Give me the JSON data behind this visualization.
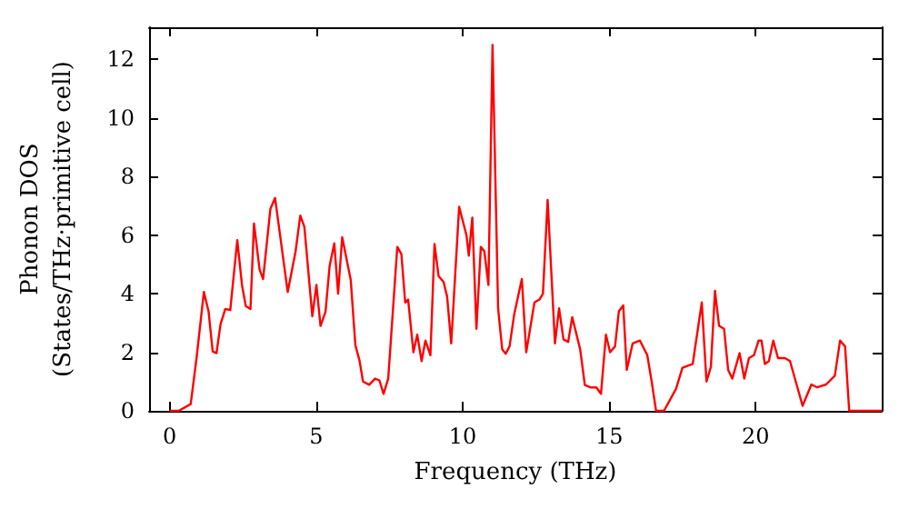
{
  "chart_data": {
    "type": "line",
    "xlabel": "Frequency (THz)",
    "ylabel": "Phonon DOS\n(States/THz·primitive cell)",
    "x": [
      0,
      0.31,
      0.72,
      0.92,
      1.17,
      1.33,
      1.47,
      1.6,
      1.74,
      1.9,
      2.07,
      2.31,
      2.47,
      2.6,
      2.76,
      2.88,
      3.07,
      3.19,
      3.44,
      3.6,
      4.03,
      4.3,
      4.46,
      4.6,
      4.87,
      5.01,
      5.15,
      5.32,
      5.46,
      5.62,
      5.75,
      5.89,
      6.18,
      6.34,
      6.48,
      6.6,
      6.81,
      7.01,
      7.16,
      7.3,
      7.46,
      7.77,
      7.91,
      8.04,
      8.14,
      8.32,
      8.45,
      8.6,
      8.73,
      8.9,
      9.04,
      9.18,
      9.35,
      9.47,
      9.61,
      9.88,
      10.13,
      10.21,
      10.33,
      10.47,
      10.62,
      10.74,
      10.88,
      11.02,
      11.21,
      11.35,
      11.47,
      11.6,
      11.76,
      12.02,
      12.17,
      12.45,
      12.62,
      12.74,
      12.9,
      13.15,
      13.29,
      13.44,
      13.6,
      13.74,
      14.01,
      14.17,
      14.36,
      14.56,
      14.72,
      14.89,
      15.03,
      15.2,
      15.33,
      15.48,
      15.6,
      15.8,
      16.05,
      16.3,
      16.45,
      16.6,
      16.87,
      17.28,
      17.5,
      17.85,
      18.16,
      18.32,
      18.47,
      18.61,
      18.75,
      18.92,
      19.06,
      19.2,
      19.45,
      19.61,
      19.77,
      19.94,
      20.1,
      20.2,
      20.31,
      20.45,
      20.6,
      20.76,
      21.0,
      21.17,
      21.6,
      21.9,
      22.1,
      22.4,
      22.7,
      22.88,
      23.05,
      23.19,
      24.3
    ],
    "series": [
      {
        "color": "#ff0000",
        "values": [
          0,
          0,
          0.23,
          1.8,
          4.06,
          3.4,
          2.03,
          1.97,
          2.96,
          3.48,
          3.44,
          5.83,
          4.3,
          3.58,
          3.48,
          6.4,
          4.83,
          4.5,
          6.9,
          7.27,
          4.06,
          5.45,
          6.67,
          6.28,
          3.23,
          4.3,
          2.9,
          3.38,
          4.94,
          5.72,
          4.0,
          5.93,
          4.48,
          2.24,
          1.72,
          1.0,
          0.89,
          1.1,
          1.04,
          0.58,
          1.1,
          5.6,
          5.35,
          3.7,
          3.8,
          2.0,
          2.6,
          1.7,
          2.4,
          1.9,
          5.7,
          4.6,
          4.4,
          3.9,
          2.3,
          6.97,
          6.0,
          5.3,
          6.6,
          2.8,
          5.6,
          5.45,
          4.3,
          12.5,
          3.5,
          2.1,
          1.95,
          2.2,
          3.3,
          4.5,
          2.0,
          3.7,
          3.8,
          4.0,
          7.2,
          2.3,
          3.5,
          2.44,
          2.35,
          3.2,
          2.1,
          0.88,
          0.8,
          0.8,
          0.58,
          2.6,
          2.0,
          2.2,
          3.4,
          3.6,
          1.4,
          2.3,
          2.4,
          1.9,
          1.0,
          0,
          0,
          0.75,
          1.47,
          1.6,
          3.7,
          1.0,
          1.5,
          4.1,
          2.9,
          2.8,
          1.4,
          1.1,
          1.97,
          1.1,
          1.8,
          1.9,
          2.4,
          2.4,
          1.6,
          1.7,
          2.4,
          1.8,
          1.8,
          1.7,
          0.17,
          0.9,
          0.8,
          0.9,
          1.2,
          2.4,
          2.2,
          0,
          0
        ]
      }
    ],
    "xlim": [
      -0.7,
      24.3
    ],
    "xticks": [
      0,
      5,
      10,
      15,
      20
    ],
    "ylim": [
      0,
      13.1
    ],
    "yticks": [
      0,
      2,
      4,
      6,
      8,
      10,
      12
    ],
    "marker": "none",
    "line_style": "solid"
  }
}
